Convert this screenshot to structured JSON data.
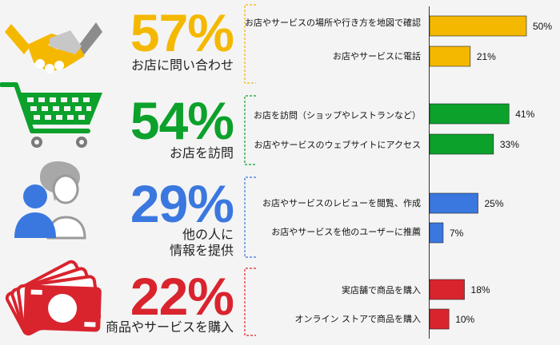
{
  "groups": [
    {
      "pct": "57%",
      "caption": "お店に問い合わせ",
      "color": "#f5b800",
      "icon": "handshake-icon"
    },
    {
      "pct": "54%",
      "caption": "お店を訪問",
      "color": "#0ba12b",
      "icon": "shopping-cart-icon"
    },
    {
      "pct": "29%",
      "caption": "他の人に\n情報を提供",
      "color": "#3a78e0",
      "icon": "people-chat-icon"
    },
    {
      "pct": "22%",
      "caption": "商品やサービスを購入",
      "color": "#d9242e",
      "icon": "banknotes-icon"
    }
  ],
  "chart_data": {
    "type": "bar",
    "orientation": "horizontal",
    "categories": [
      "お店やサービスの場所や行き方を地図で確認",
      "お店やサービスに電話",
      "お店を訪問（ショップやレストランなど）",
      "お店やサービスのウェブサイトにアクセス",
      "お店やサービスのレビューを閲覧、作成",
      "お店やサービスを他のユーザーに推薦",
      "実店舗で商品を購入",
      "オンライン ストアで商品を購入"
    ],
    "values": [
      50,
      21,
      41,
      33,
      25,
      7,
      18,
      10
    ],
    "value_labels": [
      "50%",
      "21%",
      "41%",
      "33%",
      "25%",
      "7%",
      "18%",
      "10%"
    ],
    "group_index": [
      0,
      0,
      1,
      1,
      2,
      2,
      3,
      3
    ],
    "unit": "%",
    "xlim": [
      0,
      50
    ],
    "grid": false
  }
}
